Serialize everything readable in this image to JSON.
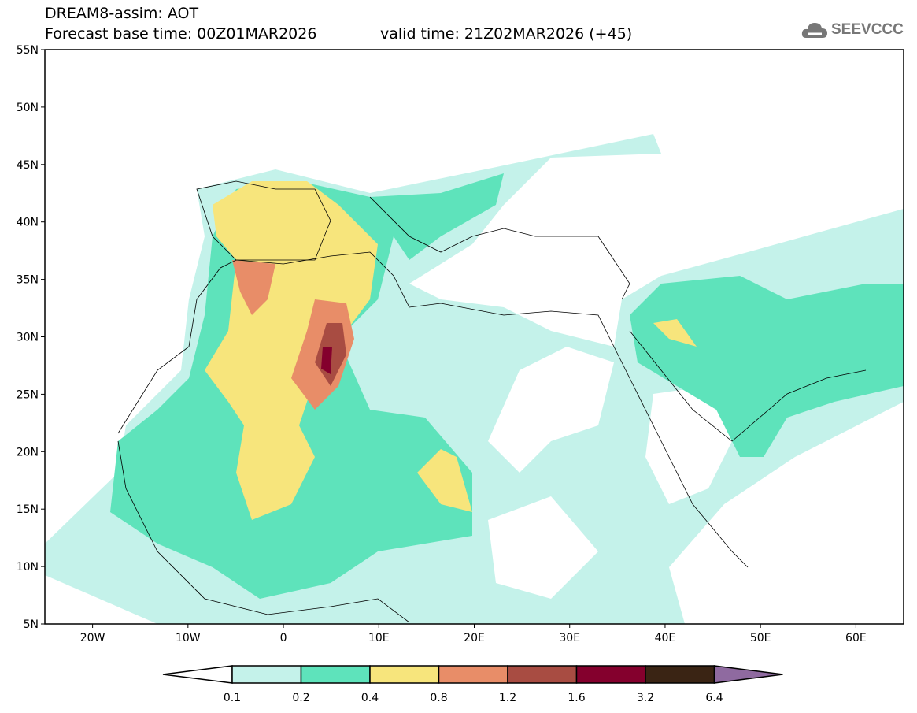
{
  "header": {
    "title": "DREAM8-assim: AOT",
    "base_time": "Forecast base time: 00Z01MAR2026",
    "valid_time": "valid time: 21Z02MAR2026 (+45)"
  },
  "logo": {
    "text": "SEEVCCC",
    "icon": "cloud-icon"
  },
  "map": {
    "lat_ticks": [
      "55N",
      "50N",
      "45N",
      "40N",
      "35N",
      "30N",
      "25N",
      "20N",
      "15N",
      "10N",
      "5N"
    ],
    "lon_ticks": [
      "20W",
      "10W",
      "0",
      "10E",
      "20E",
      "30E",
      "40E",
      "50E",
      "60E"
    ],
    "lon_range": [
      -25,
      65
    ],
    "lat_range": [
      5,
      55
    ]
  },
  "colorbar": {
    "labels": [
      "0.1",
      "0.2",
      "0.4",
      "0.8",
      "1.2",
      "1.6",
      "3.2",
      "6.4"
    ],
    "colors": [
      "#ffffff",
      "#c4f2ea",
      "#5ee3bb",
      "#f7e57c",
      "#e88d68",
      "#a84c42",
      "#84002d",
      "#3a2414",
      "#8f6aa0"
    ]
  }
}
